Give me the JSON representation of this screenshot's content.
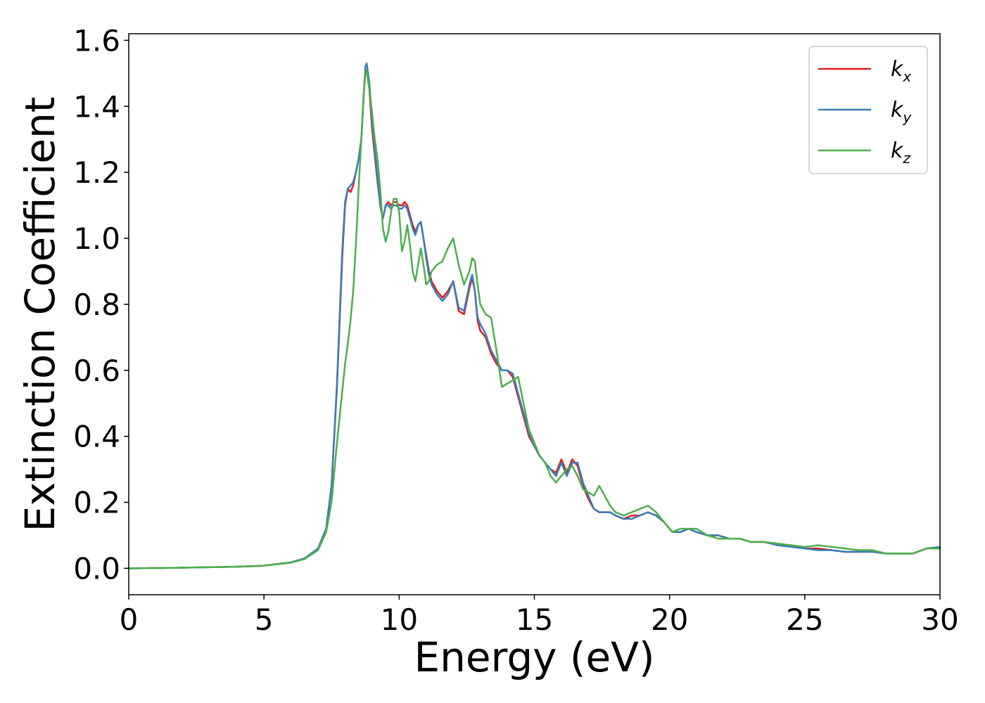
{
  "chart_data": {
    "type": "line",
    "title": "",
    "xlabel": "Energy (eV)",
    "ylabel": "Extinction Coefficient",
    "xlim": [
      0,
      30
    ],
    "ylim": [
      -0.08,
      1.62
    ],
    "xticks": [
      "0",
      "5",
      "10",
      "15",
      "20",
      "25",
      "30"
    ],
    "xtick_values": [
      0,
      5,
      10,
      15,
      20,
      25,
      30
    ],
    "yticks": [
      "0.0",
      "0.2",
      "0.4",
      "0.6",
      "0.8",
      "1.0",
      "1.2",
      "1.4",
      "1.6"
    ],
    "ytick_values": [
      0,
      0.2,
      0.4,
      0.6,
      0.8,
      1.0,
      1.2,
      1.4,
      1.6
    ],
    "grid": false,
    "legend_position": "top-right",
    "series": [
      {
        "label_base": "k",
        "label_sub": "x",
        "color": "#e41a1c",
        "x": [
          0,
          2,
          4,
          5,
          6,
          6.5,
          7,
          7.3,
          7.5,
          7.7,
          7.9,
          8.0,
          8.1,
          8.2,
          8.3,
          8.4,
          8.5,
          8.6,
          8.7,
          8.75,
          8.8,
          8.9,
          9.0,
          9.1,
          9.2,
          9.3,
          9.4,
          9.5,
          9.6,
          9.7,
          9.8,
          9.9,
          10.0,
          10.1,
          10.2,
          10.3,
          10.4,
          10.5,
          10.6,
          10.7,
          10.8,
          10.9,
          11.0,
          11.1,
          11.2,
          11.4,
          11.6,
          11.8,
          12.0,
          12.2,
          12.4,
          12.6,
          12.7,
          12.8,
          12.9,
          13.0,
          13.2,
          13.4,
          13.6,
          13.8,
          14.0,
          14.2,
          14.4,
          14.6,
          14.8,
          15.0,
          15.2,
          15.4,
          15.6,
          15.8,
          16.0,
          16.2,
          16.4,
          16.6,
          16.8,
          17.0,
          17.2,
          17.4,
          17.6,
          17.8,
          18.0,
          18.3,
          18.6,
          18.9,
          19.2,
          19.5,
          19.8,
          20.1,
          20.4,
          20.7,
          21.0,
          21.4,
          21.8,
          22.2,
          22.6,
          23.0,
          23.5,
          24.0,
          24.5,
          25.0,
          25.5,
          26.0,
          26.5,
          27.0,
          27.5,
          28.0,
          28.5,
          29.0,
          29.5,
          30.0
        ],
        "y": [
          0.0,
          0.002,
          0.005,
          0.008,
          0.018,
          0.03,
          0.06,
          0.12,
          0.25,
          0.55,
          0.95,
          1.1,
          1.15,
          1.14,
          1.16,
          1.2,
          1.24,
          1.3,
          1.45,
          1.5,
          1.51,
          1.45,
          1.33,
          1.25,
          1.17,
          1.1,
          1.06,
          1.1,
          1.11,
          1.1,
          1.11,
          1.11,
          1.1,
          1.1,
          1.11,
          1.1,
          1.07,
          1.04,
          1.02,
          1.04,
          1.05,
          1.0,
          0.95,
          0.9,
          0.87,
          0.84,
          0.82,
          0.84,
          0.87,
          0.78,
          0.77,
          0.85,
          0.88,
          0.84,
          0.75,
          0.72,
          0.7,
          0.65,
          0.62,
          0.6,
          0.6,
          0.58,
          0.52,
          0.46,
          0.4,
          0.37,
          0.34,
          0.32,
          0.3,
          0.29,
          0.33,
          0.29,
          0.33,
          0.31,
          0.25,
          0.21,
          0.18,
          0.17,
          0.17,
          0.17,
          0.16,
          0.15,
          0.16,
          0.16,
          0.17,
          0.16,
          0.14,
          0.11,
          0.11,
          0.12,
          0.11,
          0.1,
          0.1,
          0.09,
          0.09,
          0.08,
          0.08,
          0.07,
          0.07,
          0.06,
          0.06,
          0.055,
          0.05,
          0.05,
          0.05,
          0.045,
          0.045,
          0.045,
          0.06,
          0.06
        ]
      },
      {
        "label_base": "k",
        "label_sub": "y",
        "color": "#377eb8",
        "x": [
          0,
          2,
          4,
          5,
          6,
          6.5,
          7,
          7.3,
          7.5,
          7.7,
          7.9,
          8.0,
          8.1,
          8.2,
          8.3,
          8.4,
          8.5,
          8.6,
          8.7,
          8.75,
          8.8,
          8.9,
          9.0,
          9.1,
          9.2,
          9.3,
          9.4,
          9.5,
          9.6,
          9.7,
          9.8,
          9.9,
          10.0,
          10.1,
          10.2,
          10.3,
          10.4,
          10.5,
          10.6,
          10.7,
          10.8,
          10.9,
          11.0,
          11.1,
          11.2,
          11.4,
          11.6,
          11.8,
          12.0,
          12.2,
          12.4,
          12.6,
          12.7,
          12.8,
          12.9,
          13.0,
          13.2,
          13.4,
          13.6,
          13.8,
          14.0,
          14.2,
          14.4,
          14.6,
          14.8,
          15.0,
          15.2,
          15.4,
          15.6,
          15.8,
          16.0,
          16.2,
          16.4,
          16.6,
          16.8,
          17.0,
          17.2,
          17.4,
          17.6,
          17.8,
          18.0,
          18.3,
          18.6,
          18.9,
          19.2,
          19.5,
          19.8,
          20.1,
          20.4,
          20.7,
          21.0,
          21.4,
          21.8,
          22.2,
          22.6,
          23.0,
          23.5,
          24.0,
          24.5,
          25.0,
          25.5,
          26.0,
          26.5,
          27.0,
          27.5,
          28.0,
          28.5,
          29.0,
          29.5,
          30.0
        ],
        "y": [
          0.0,
          0.002,
          0.005,
          0.008,
          0.018,
          0.03,
          0.06,
          0.12,
          0.25,
          0.56,
          0.97,
          1.11,
          1.15,
          1.16,
          1.17,
          1.2,
          1.24,
          1.3,
          1.45,
          1.52,
          1.53,
          1.47,
          1.35,
          1.27,
          1.18,
          1.1,
          1.06,
          1.1,
          1.1,
          1.09,
          1.1,
          1.1,
          1.09,
          1.09,
          1.1,
          1.09,
          1.06,
          1.03,
          1.01,
          1.04,
          1.05,
          1.0,
          0.94,
          0.89,
          0.86,
          0.83,
          0.81,
          0.83,
          0.87,
          0.79,
          0.78,
          0.86,
          0.89,
          0.84,
          0.76,
          0.74,
          0.71,
          0.66,
          0.63,
          0.6,
          0.6,
          0.59,
          0.53,
          0.47,
          0.41,
          0.37,
          0.34,
          0.32,
          0.3,
          0.28,
          0.32,
          0.28,
          0.32,
          0.32,
          0.26,
          0.22,
          0.18,
          0.17,
          0.17,
          0.17,
          0.16,
          0.15,
          0.15,
          0.16,
          0.17,
          0.16,
          0.14,
          0.11,
          0.11,
          0.12,
          0.11,
          0.1,
          0.1,
          0.09,
          0.09,
          0.08,
          0.08,
          0.07,
          0.065,
          0.06,
          0.055,
          0.055,
          0.05,
          0.05,
          0.05,
          0.045,
          0.045,
          0.045,
          0.06,
          0.065
        ]
      },
      {
        "label_base": "k",
        "label_sub": "z",
        "color": "#4daf4a",
        "x": [
          0,
          2,
          4,
          5,
          6,
          6.5,
          7,
          7.3,
          7.5,
          7.7,
          7.9,
          8.0,
          8.1,
          8.2,
          8.3,
          8.4,
          8.5,
          8.6,
          8.7,
          8.75,
          8.8,
          8.9,
          9.0,
          9.1,
          9.2,
          9.3,
          9.4,
          9.5,
          9.6,
          9.7,
          9.8,
          9.9,
          10.0,
          10.1,
          10.2,
          10.3,
          10.4,
          10.5,
          10.6,
          10.7,
          10.8,
          10.9,
          11.0,
          11.1,
          11.2,
          11.4,
          11.6,
          11.8,
          12.0,
          12.2,
          12.4,
          12.6,
          12.7,
          12.8,
          12.9,
          13.0,
          13.2,
          13.4,
          13.6,
          13.8,
          14.0,
          14.2,
          14.4,
          14.6,
          14.8,
          15.0,
          15.2,
          15.4,
          15.6,
          15.8,
          16.0,
          16.2,
          16.4,
          16.6,
          16.8,
          17.0,
          17.2,
          17.4,
          17.6,
          17.8,
          18.0,
          18.3,
          18.6,
          18.9,
          19.2,
          19.5,
          19.8,
          20.1,
          20.4,
          20.7,
          21.0,
          21.4,
          21.8,
          22.2,
          22.6,
          23.0,
          23.5,
          24.0,
          24.5,
          25.0,
          25.5,
          26.0,
          26.5,
          27.0,
          27.5,
          28.0,
          28.5,
          29.0,
          29.5,
          30.0
        ],
        "y": [
          0.0,
          0.002,
          0.005,
          0.008,
          0.017,
          0.028,
          0.055,
          0.11,
          0.2,
          0.38,
          0.54,
          0.62,
          0.68,
          0.75,
          0.84,
          0.98,
          1.15,
          1.3,
          1.45,
          1.5,
          1.51,
          1.45,
          1.38,
          1.3,
          1.24,
          1.15,
          1.03,
          0.99,
          1.02,
          1.08,
          1.12,
          1.12,
          1.08,
          0.96,
          0.99,
          1.04,
          0.98,
          0.9,
          0.87,
          0.92,
          0.97,
          0.92,
          0.86,
          0.87,
          0.9,
          0.92,
          0.93,
          0.97,
          1.0,
          0.92,
          0.86,
          0.9,
          0.94,
          0.93,
          0.86,
          0.8,
          0.77,
          0.76,
          0.66,
          0.55,
          0.56,
          0.57,
          0.58,
          0.5,
          0.42,
          0.38,
          0.34,
          0.32,
          0.28,
          0.26,
          0.28,
          0.3,
          0.31,
          0.28,
          0.24,
          0.23,
          0.22,
          0.25,
          0.22,
          0.19,
          0.17,
          0.16,
          0.17,
          0.18,
          0.19,
          0.17,
          0.14,
          0.11,
          0.12,
          0.12,
          0.12,
          0.1,
          0.09,
          0.09,
          0.09,
          0.08,
          0.08,
          0.075,
          0.07,
          0.065,
          0.07,
          0.065,
          0.06,
          0.055,
          0.055,
          0.045,
          0.045,
          0.045,
          0.06,
          0.06
        ]
      }
    ]
  }
}
